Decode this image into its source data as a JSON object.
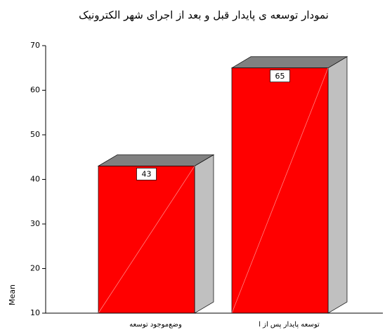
{
  "chart_data": {
    "type": "bar3d",
    "title": "نمودار توسعه ی پایدار قبل و بعد از اجرای شهر الکترونیک",
    "y_label": "Mean",
    "categories": [
      "وضع‌موجود توسعه",
      "توسعه پایدار پس از ا"
    ],
    "values": [
      43,
      65
    ],
    "color": "#ff0000",
    "ylim": [
      10,
      70
    ],
    "yticks": [
      10,
      20,
      30,
      40,
      50,
      60,
      70
    ]
  }
}
